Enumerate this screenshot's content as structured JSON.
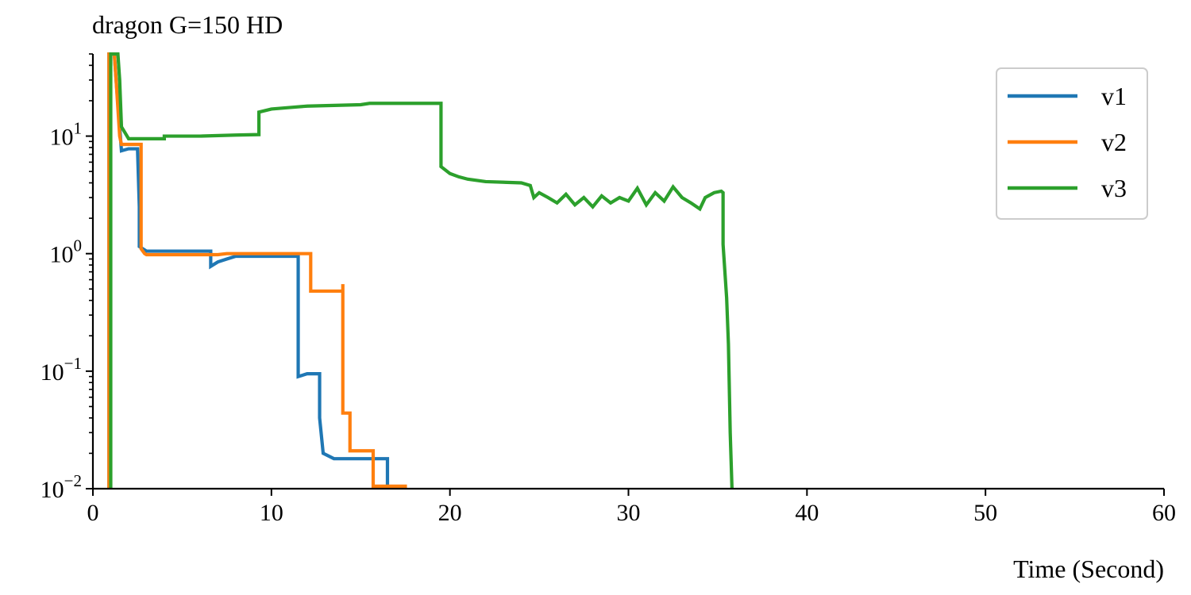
{
  "chart_data": {
    "type": "line",
    "title": "dragon G=150 HD",
    "xlabel": "Time (Second)",
    "ylabel": "",
    "xlim": [
      0,
      60
    ],
    "ylim": [
      0.01,
      50
    ],
    "yscale": "log",
    "grid": false,
    "legend_position": "upper-right",
    "x_ticks": [
      0,
      10,
      20,
      30,
      40,
      50,
      60
    ],
    "x_tick_labels": [
      "0",
      "10",
      "20",
      "30",
      "40",
      "50",
      "60"
    ],
    "y_ticks": [
      0.01,
      0.1,
      1,
      10
    ],
    "y_tick_labels": [
      {
        "base": "10",
        "exp": "−2"
      },
      {
        "base": "10",
        "exp": "−1"
      },
      {
        "base": "10",
        "exp": "0"
      },
      {
        "base": "10",
        "exp": "1"
      }
    ],
    "series": [
      {
        "name": "v1",
        "color": "#1f77b4",
        "points": [
          [
            0.9,
            0.01
          ],
          [
            0.9,
            50
          ],
          [
            1.2,
            50
          ],
          [
            1.3,
            30
          ],
          [
            1.5,
            12
          ],
          [
            1.6,
            7.5
          ],
          [
            2.0,
            7.8
          ],
          [
            2.5,
            7.8
          ],
          [
            2.6,
            2.5
          ],
          [
            2.6,
            1.15
          ],
          [
            3.0,
            1.05
          ],
          [
            6.6,
            1.05
          ],
          [
            6.6,
            0.78
          ],
          [
            7.0,
            0.85
          ],
          [
            7.5,
            0.9
          ],
          [
            8.0,
            0.95
          ],
          [
            11.5,
            0.95
          ],
          [
            11.5,
            0.09
          ],
          [
            12.0,
            0.095
          ],
          [
            12.7,
            0.095
          ],
          [
            12.7,
            0.04
          ],
          [
            12.9,
            0.02
          ],
          [
            13.5,
            0.018
          ],
          [
            15.5,
            0.018
          ],
          [
            16.5,
            0.018
          ],
          [
            16.5,
            0.01
          ]
        ]
      },
      {
        "name": "v2",
        "color": "#ff7f0e",
        "points": [
          [
            0.9,
            0.01
          ],
          [
            0.9,
            50
          ],
          [
            1.2,
            50
          ],
          [
            1.3,
            30
          ],
          [
            1.5,
            10
          ],
          [
            1.6,
            8.5
          ],
          [
            2.7,
            8.5
          ],
          [
            2.7,
            1.1
          ],
          [
            2.9,
            1.0
          ],
          [
            3.0,
            0.98
          ],
          [
            7.0,
            0.98
          ],
          [
            7.5,
            1.0
          ],
          [
            12.2,
            1.0
          ],
          [
            12.2,
            0.48
          ],
          [
            14.0,
            0.48
          ],
          [
            14.0,
            0.55
          ],
          [
            14.0,
            0.044
          ],
          [
            14.4,
            0.044
          ],
          [
            14.4,
            0.021
          ],
          [
            15.7,
            0.021
          ],
          [
            15.7,
            0.0105
          ],
          [
            17.5,
            0.0105
          ]
        ]
      },
      {
        "name": "v3",
        "color": "#2ca02c",
        "points": [
          [
            1.0,
            0.01
          ],
          [
            1.0,
            50
          ],
          [
            1.4,
            50
          ],
          [
            1.5,
            30
          ],
          [
            1.6,
            12
          ],
          [
            2.0,
            9.5
          ],
          [
            4.0,
            9.5
          ],
          [
            4.0,
            10.0
          ],
          [
            6.0,
            10.0
          ],
          [
            8.0,
            10.2
          ],
          [
            9.3,
            10.3
          ],
          [
            9.3,
            16.0
          ],
          [
            10.0,
            17.0
          ],
          [
            11.0,
            17.5
          ],
          [
            12.0,
            18.0
          ],
          [
            15.0,
            18.5
          ],
          [
            15.5,
            19.0
          ],
          [
            19.5,
            19.0
          ],
          [
            19.5,
            5.5
          ],
          [
            20.0,
            4.8
          ],
          [
            20.5,
            4.5
          ],
          [
            21.0,
            4.3
          ],
          [
            22.0,
            4.1
          ],
          [
            24.0,
            4.0
          ],
          [
            24.5,
            3.8
          ],
          [
            24.7,
            3.0
          ],
          [
            25.0,
            3.3
          ],
          [
            25.5,
            3.0
          ],
          [
            26.0,
            2.7
          ],
          [
            26.5,
            3.2
          ],
          [
            27.0,
            2.6
          ],
          [
            27.5,
            3.0
          ],
          [
            28.0,
            2.5
          ],
          [
            28.5,
            3.1
          ],
          [
            29.0,
            2.7
          ],
          [
            29.5,
            3.0
          ],
          [
            30.0,
            2.8
          ],
          [
            30.5,
            3.6
          ],
          [
            31.0,
            2.6
          ],
          [
            31.5,
            3.3
          ],
          [
            32.0,
            2.8
          ],
          [
            32.5,
            3.7
          ],
          [
            33.0,
            3.0
          ],
          [
            33.5,
            2.7
          ],
          [
            34.0,
            2.4
          ],
          [
            34.3,
            3.0
          ],
          [
            34.8,
            3.3
          ],
          [
            35.2,
            3.4
          ],
          [
            35.3,
            3.3
          ],
          [
            35.3,
            1.2
          ],
          [
            35.5,
            0.42
          ],
          [
            35.6,
            0.17
          ],
          [
            35.7,
            0.03
          ],
          [
            35.8,
            0.01
          ]
        ]
      }
    ]
  }
}
